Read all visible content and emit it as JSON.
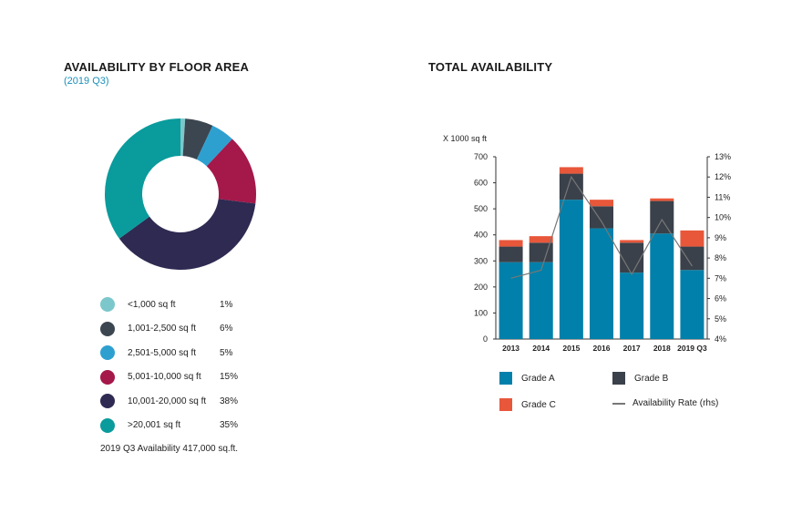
{
  "left": {
    "title": "AVAILABILITY BY FLOOR AREA",
    "subtitle": "(2019 Q3)",
    "note": "2019 Q3  Availability 417,000 sq.ft."
  },
  "right": {
    "title": "TOTAL AVAILABILITY",
    "y_unit_label": "X 1000 sq ft"
  },
  "chart_data": [
    {
      "type": "pie",
      "style": "donut",
      "labels": [
        "<1,000 sq ft",
        "1,001-2,500 sq ft",
        "2,501-5,000 sq ft",
        "5,001-10,000 sq ft",
        "10,001-20,000 sq ft",
        ">20,001 sq ft"
      ],
      "values": [
        1,
        6,
        5,
        15,
        38,
        35
      ],
      "value_labels": [
        "1%",
        "6%",
        "5%",
        "15%",
        "38%",
        "35%"
      ],
      "colors": [
        "#7cc7cb",
        "#3c4650",
        "#2ea0d0",
        "#a4184a",
        "#2e2a52",
        "#0a9b9c"
      ]
    },
    {
      "type": "bar",
      "stacked": true,
      "categories": [
        "2013",
        "2014",
        "2015",
        "2016",
        "2017",
        "2018",
        "2019 Q3"
      ],
      "series": [
        {
          "name": "Grade A",
          "color": "#0080aa",
          "values": [
            295,
            295,
            535,
            425,
            255,
            405,
            265
          ]
        },
        {
          "name": "Grade B",
          "color": "#3a414a",
          "values": [
            60,
            75,
            100,
            85,
            115,
            125,
            90
          ]
        },
        {
          "name": "Grade C",
          "color": "#e8573a",
          "values": [
            25,
            25,
            25,
            25,
            10,
            10,
            62
          ]
        }
      ],
      "line": {
        "name": "Availability Rate (rhs)",
        "color": "#777777",
        "values": [
          7.0,
          7.4,
          12.0,
          9.8,
          7.2,
          9.9,
          7.6
        ]
      },
      "ylim": [
        0,
        700
      ],
      "yticks": [
        0,
        100,
        200,
        300,
        400,
        500,
        600,
        700
      ],
      "y2lim": [
        4,
        13
      ],
      "y2ticks": [
        "4%",
        "5%",
        "6%",
        "7%",
        "8%",
        "9%",
        "10%",
        "11%",
        "12%",
        "13%"
      ],
      "legend_position": "bottom"
    }
  ]
}
